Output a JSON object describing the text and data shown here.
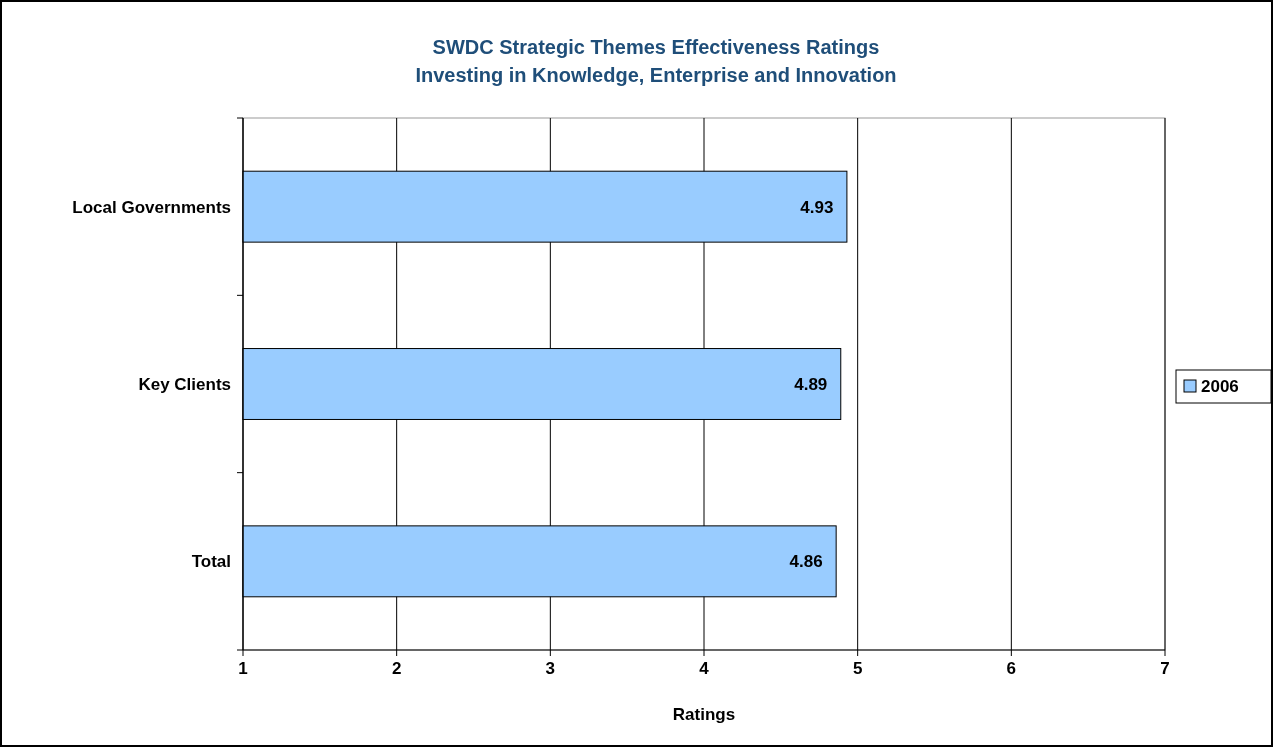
{
  "chart_data": {
    "type": "bar",
    "orientation": "horizontal",
    "title": "SWDC Strategic Themes Effectiveness Ratings",
    "subtitle": "Investing in Knowledge, Enterprise and Innovation",
    "xlabel": "Ratings",
    "categories": [
      "Local Governments",
      "Key Clients",
      "Total"
    ],
    "series": [
      {
        "name": "2006",
        "color": "#99ccff",
        "values": [
          4.93,
          4.89,
          4.86
        ]
      }
    ],
    "xlim": [
      1,
      7
    ],
    "xticks": [
      1,
      2,
      3,
      4,
      5,
      6,
      7
    ],
    "grid": "x",
    "legend": "right",
    "data_labels": true
  }
}
